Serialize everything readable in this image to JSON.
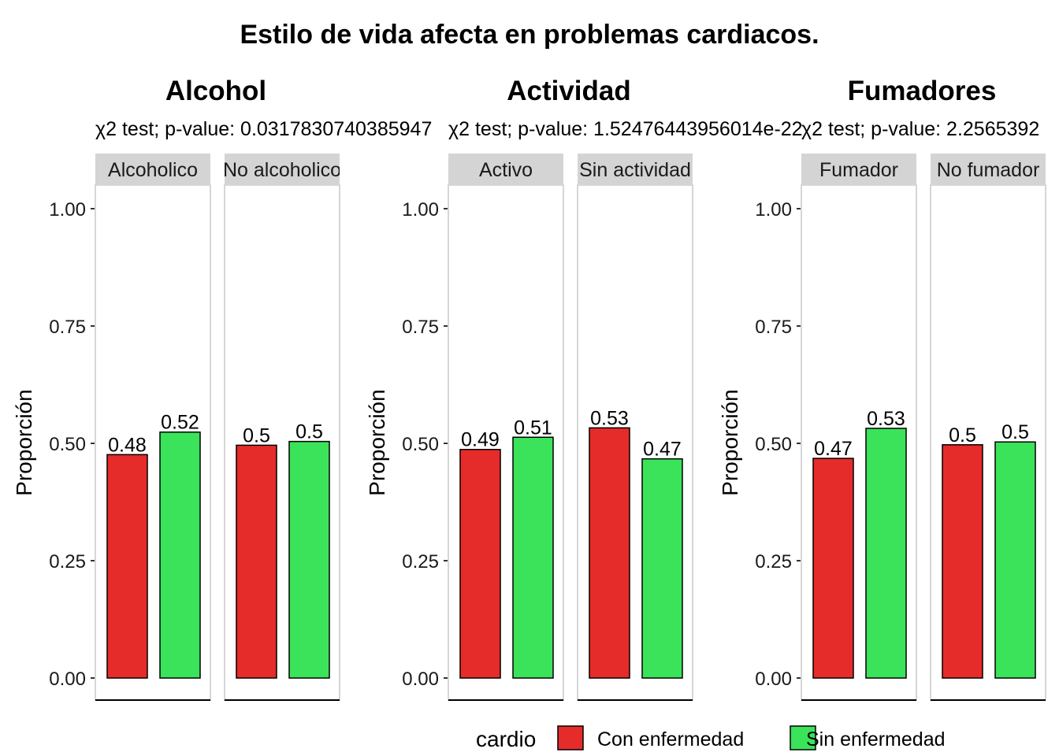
{
  "chart_data": {
    "type": "bar",
    "title": "Estilo de vida afecta en problemas cardiacos.",
    "ylabel": "Proporción",
    "ylim": [
      0,
      1.05
    ],
    "y_ticks": [
      "0.00",
      "0.25",
      "0.50",
      "0.75",
      "1.00"
    ],
    "y_tick_values": [
      0,
      0.25,
      0.5,
      0.75,
      1.0
    ],
    "grid": false,
    "legend": {
      "title": "cardio",
      "position": "bottom",
      "entries": [
        {
          "name": "Con enfermedad",
          "color": "#E62B2B"
        },
        {
          "name": "Sin enfermedad",
          "color": "#3AE35A"
        }
      ]
    },
    "panels": [
      {
        "title": "Alcohol",
        "subtitle": "χ2 test; p-value:  0.0317830740385947",
        "facets": [
          {
            "label": "Alcoholico",
            "values": [
              0.476,
              0.524
            ],
            "labels": [
              "0.48",
              "0.52"
            ]
          },
          {
            "label": "No alcoholico",
            "values": [
              0.496,
              0.504
            ],
            "labels": [
              "0.5",
              "0.5"
            ]
          }
        ]
      },
      {
        "title": "Actividad",
        "subtitle": "χ2 test; p-value:  1.52476443956014e-22",
        "facets": [
          {
            "label": "Activo",
            "values": [
              0.487,
              0.513
            ],
            "labels": [
              "0.49",
              "0.51"
            ]
          },
          {
            "label": "Sin actividad",
            "values": [
              0.533,
              0.467
            ],
            "labels": [
              "0.53",
              "0.47"
            ]
          }
        ]
      },
      {
        "title": "Fumadores",
        "subtitle": "χ2 test; p-value: 2.2565392",
        "facets": [
          {
            "label": "Fumador",
            "values": [
              0.468,
              0.532
            ],
            "labels": [
              "0.47",
              "0.53"
            ]
          },
          {
            "label": "No fumador",
            "values": [
              0.497,
              0.503
            ],
            "labels": [
              "0.5",
              "0.5"
            ]
          }
        ]
      }
    ]
  }
}
